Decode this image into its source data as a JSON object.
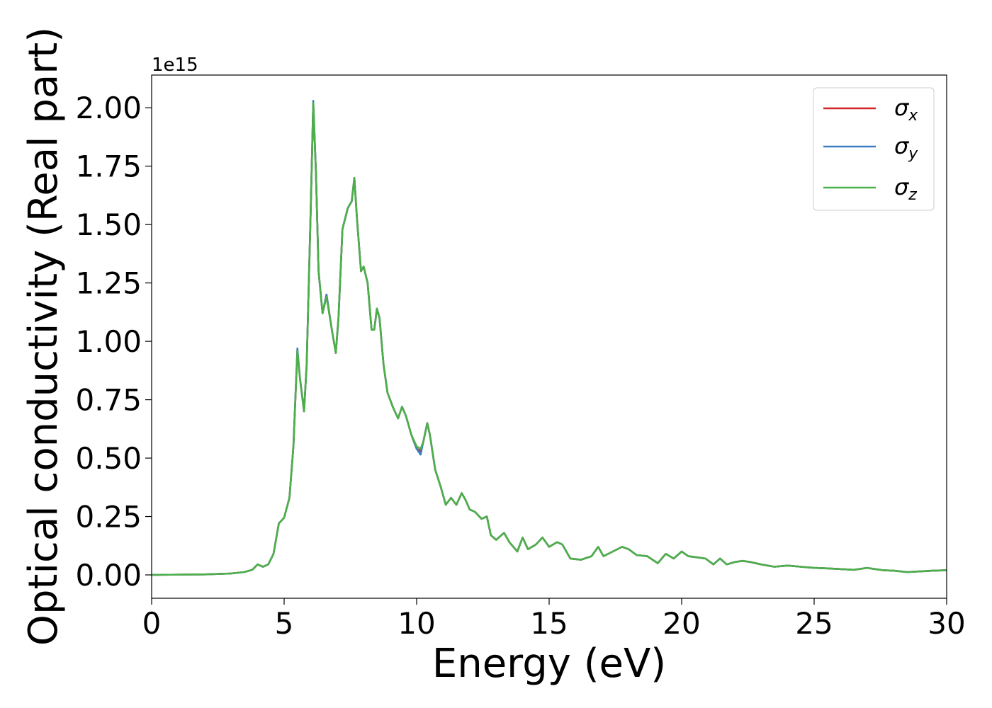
{
  "chart_data": {
    "type": "line",
    "xlabel": "Energy (eV)",
    "ylabel": "Optical conductivity (Real part)",
    "offset_label": "1e15",
    "scale": 1000000000000000.0,
    "xlim": [
      0,
      30
    ],
    "ylim": [
      -0.1,
      2.14
    ],
    "xticks": [
      0,
      5,
      10,
      15,
      20,
      25,
      30
    ],
    "xtick_labels": [
      "0",
      "5",
      "10",
      "15",
      "20",
      "25",
      "30"
    ],
    "yticks": [
      0.0,
      0.25,
      0.5,
      0.75,
      1.0,
      1.25,
      1.5,
      1.75,
      2.0
    ],
    "ytick_labels": [
      "0.00",
      "0.25",
      "0.50",
      "0.75",
      "1.00",
      "1.25",
      "1.50",
      "1.75",
      "2.00"
    ],
    "grid": false,
    "legend_position": "top-right",
    "series": [
      {
        "name": "σx",
        "base": "σ",
        "sub": "x",
        "color": "#d62728",
        "x": [
          0,
          2,
          3,
          3.5,
          3.8,
          4.0,
          4.2,
          4.4,
          4.6,
          4.8,
          5.0,
          5.2,
          5.35,
          5.5,
          5.6,
          5.75,
          5.85,
          6.0,
          6.1,
          6.2,
          6.3,
          6.45,
          6.6,
          6.8,
          6.95,
          7.05,
          7.2,
          7.4,
          7.55,
          7.65,
          7.75,
          7.9,
          8.0,
          8.15,
          8.3,
          8.4,
          8.5,
          8.6,
          8.75,
          8.9,
          9.1,
          9.3,
          9.45,
          9.6,
          9.8,
          10.0,
          10.15,
          10.25,
          10.4,
          10.5,
          10.7,
          10.9,
          11.1,
          11.3,
          11.5,
          11.7,
          11.85,
          12.0,
          12.2,
          12.45,
          12.65,
          12.8,
          13.0,
          13.3,
          13.5,
          13.8,
          14.0,
          14.2,
          14.5,
          14.75,
          15.0,
          15.3,
          15.5,
          15.8,
          16.2,
          16.6,
          16.85,
          17.05,
          17.4,
          17.75,
          18.0,
          18.3,
          18.7,
          19.1,
          19.4,
          19.7,
          20.0,
          20.25,
          20.6,
          20.9,
          21.2,
          21.45,
          21.7,
          22.0,
          22.3,
          22.6,
          23.0,
          23.5,
          24.0,
          24.5,
          25.0,
          25.5,
          26.0,
          26.5,
          27.0,
          27.3,
          27.6,
          28.0,
          28.5,
          29.0,
          29.5,
          30.0
        ],
        "y": [
          0.0,
          0.002,
          0.006,
          0.012,
          0.022,
          0.045,
          0.035,
          0.045,
          0.09,
          0.22,
          0.245,
          0.33,
          0.55,
          0.96,
          0.84,
          0.7,
          0.9,
          1.55,
          2.02,
          1.72,
          1.3,
          1.12,
          1.2,
          1.05,
          0.95,
          1.1,
          1.48,
          1.57,
          1.6,
          1.7,
          1.52,
          1.3,
          1.32,
          1.25,
          1.05,
          1.05,
          1.14,
          1.1,
          0.9,
          0.78,
          0.72,
          0.67,
          0.72,
          0.68,
          0.6,
          0.54,
          0.53,
          0.57,
          0.65,
          0.6,
          0.45,
          0.38,
          0.3,
          0.33,
          0.3,
          0.35,
          0.32,
          0.28,
          0.27,
          0.24,
          0.25,
          0.17,
          0.15,
          0.18,
          0.14,
          0.1,
          0.16,
          0.11,
          0.13,
          0.16,
          0.12,
          0.14,
          0.13,
          0.07,
          0.065,
          0.08,
          0.12,
          0.08,
          0.1,
          0.12,
          0.11,
          0.085,
          0.08,
          0.05,
          0.09,
          0.07,
          0.1,
          0.08,
          0.075,
          0.07,
          0.045,
          0.07,
          0.045,
          0.055,
          0.06,
          0.055,
          0.045,
          0.035,
          0.04,
          0.035,
          0.03,
          0.028,
          0.025,
          0.022,
          0.03,
          0.025,
          0.02,
          0.018,
          0.012,
          0.015,
          0.018,
          0.02
        ]
      },
      {
        "name": "σy",
        "base": "σ",
        "sub": "y",
        "color": "#3b7fbf",
        "x": [
          0,
          2,
          3,
          3.5,
          3.8,
          4.0,
          4.2,
          4.4,
          4.6,
          4.8,
          5.0,
          5.2,
          5.35,
          5.5,
          5.6,
          5.75,
          5.85,
          6.0,
          6.1,
          6.2,
          6.3,
          6.45,
          6.6,
          6.8,
          6.95,
          7.05,
          7.2,
          7.4,
          7.55,
          7.65,
          7.75,
          7.9,
          8.0,
          8.15,
          8.3,
          8.4,
          8.5,
          8.6,
          8.75,
          8.9,
          9.1,
          9.3,
          9.45,
          9.6,
          9.8,
          10.0,
          10.15,
          10.25,
          10.4,
          10.5,
          10.7,
          10.9,
          11.1,
          11.3,
          11.5,
          11.7,
          11.85,
          12.0,
          12.2,
          12.45,
          12.65,
          12.8,
          13.0,
          13.3,
          13.5,
          13.8,
          14.0,
          14.2,
          14.5,
          14.75,
          15.0,
          15.3,
          15.5,
          15.8,
          16.2,
          16.6,
          16.85,
          17.05,
          17.4,
          17.75,
          18.0,
          18.3,
          18.7,
          19.1,
          19.4,
          19.7,
          20.0,
          20.25,
          20.6,
          20.9,
          21.2,
          21.45,
          21.7,
          22.0,
          22.3,
          22.6,
          23.0,
          23.5,
          24.0,
          24.5,
          25.0,
          25.5,
          26.0,
          26.5,
          27.0,
          27.3,
          27.6,
          28.0,
          28.5,
          29.0,
          29.5,
          30.0
        ],
        "y": [
          0.0,
          0.002,
          0.006,
          0.012,
          0.022,
          0.045,
          0.035,
          0.045,
          0.09,
          0.22,
          0.245,
          0.33,
          0.55,
          0.97,
          0.84,
          0.7,
          0.9,
          1.55,
          2.03,
          1.72,
          1.3,
          1.12,
          1.2,
          1.05,
          0.95,
          1.1,
          1.48,
          1.57,
          1.6,
          1.7,
          1.52,
          1.3,
          1.32,
          1.25,
          1.05,
          1.05,
          1.14,
          1.1,
          0.9,
          0.78,
          0.72,
          0.67,
          0.72,
          0.68,
          0.6,
          0.54,
          0.515,
          0.57,
          0.65,
          0.6,
          0.45,
          0.38,
          0.3,
          0.33,
          0.3,
          0.35,
          0.32,
          0.28,
          0.27,
          0.24,
          0.25,
          0.17,
          0.15,
          0.18,
          0.14,
          0.1,
          0.16,
          0.11,
          0.13,
          0.16,
          0.12,
          0.14,
          0.13,
          0.07,
          0.065,
          0.08,
          0.12,
          0.08,
          0.1,
          0.12,
          0.11,
          0.085,
          0.08,
          0.05,
          0.09,
          0.07,
          0.1,
          0.08,
          0.075,
          0.07,
          0.045,
          0.07,
          0.045,
          0.055,
          0.06,
          0.055,
          0.045,
          0.035,
          0.04,
          0.035,
          0.03,
          0.028,
          0.025,
          0.022,
          0.03,
          0.025,
          0.02,
          0.018,
          0.012,
          0.015,
          0.018,
          0.02
        ]
      },
      {
        "name": "σz",
        "base": "σ",
        "sub": "z",
        "color": "#4daf4a",
        "x": [
          0,
          2,
          3,
          3.5,
          3.8,
          4.0,
          4.2,
          4.4,
          4.6,
          4.8,
          5.0,
          5.2,
          5.35,
          5.5,
          5.6,
          5.75,
          5.85,
          6.0,
          6.1,
          6.2,
          6.3,
          6.45,
          6.6,
          6.8,
          6.95,
          7.05,
          7.2,
          7.4,
          7.55,
          7.65,
          7.75,
          7.9,
          8.0,
          8.15,
          8.3,
          8.4,
          8.5,
          8.6,
          8.75,
          8.9,
          9.1,
          9.3,
          9.45,
          9.6,
          9.8,
          10.0,
          10.15,
          10.25,
          10.4,
          10.5,
          10.7,
          10.9,
          11.1,
          11.3,
          11.5,
          11.7,
          11.85,
          12.0,
          12.2,
          12.45,
          12.65,
          12.8,
          13.0,
          13.3,
          13.5,
          13.8,
          14.0,
          14.2,
          14.5,
          14.75,
          15.0,
          15.3,
          15.5,
          15.8,
          16.2,
          16.6,
          16.85,
          17.05,
          17.4,
          17.75,
          18.0,
          18.3,
          18.7,
          19.1,
          19.4,
          19.7,
          20.0,
          20.25,
          20.6,
          20.9,
          21.2,
          21.45,
          21.7,
          22.0,
          22.3,
          22.6,
          23.0,
          23.5,
          24.0,
          24.5,
          25.0,
          25.5,
          26.0,
          26.5,
          27.0,
          27.3,
          27.6,
          28.0,
          28.5,
          29.0,
          29.5,
          30.0
        ],
        "y": [
          0.0,
          0.002,
          0.006,
          0.012,
          0.022,
          0.045,
          0.035,
          0.045,
          0.09,
          0.22,
          0.245,
          0.33,
          0.55,
          0.96,
          0.84,
          0.7,
          0.9,
          1.55,
          2.02,
          1.72,
          1.3,
          1.12,
          1.19,
          1.05,
          0.95,
          1.1,
          1.48,
          1.57,
          1.6,
          1.7,
          1.52,
          1.3,
          1.32,
          1.25,
          1.05,
          1.05,
          1.14,
          1.1,
          0.9,
          0.78,
          0.72,
          0.67,
          0.72,
          0.68,
          0.6,
          0.55,
          0.54,
          0.57,
          0.65,
          0.6,
          0.45,
          0.38,
          0.3,
          0.33,
          0.3,
          0.35,
          0.32,
          0.28,
          0.27,
          0.24,
          0.25,
          0.17,
          0.15,
          0.18,
          0.14,
          0.1,
          0.16,
          0.11,
          0.13,
          0.16,
          0.12,
          0.14,
          0.13,
          0.07,
          0.065,
          0.08,
          0.12,
          0.08,
          0.1,
          0.12,
          0.11,
          0.085,
          0.08,
          0.05,
          0.09,
          0.07,
          0.1,
          0.08,
          0.075,
          0.07,
          0.045,
          0.07,
          0.045,
          0.055,
          0.06,
          0.055,
          0.045,
          0.035,
          0.04,
          0.035,
          0.03,
          0.028,
          0.025,
          0.022,
          0.03,
          0.025,
          0.02,
          0.018,
          0.012,
          0.015,
          0.018,
          0.02
        ]
      }
    ]
  }
}
